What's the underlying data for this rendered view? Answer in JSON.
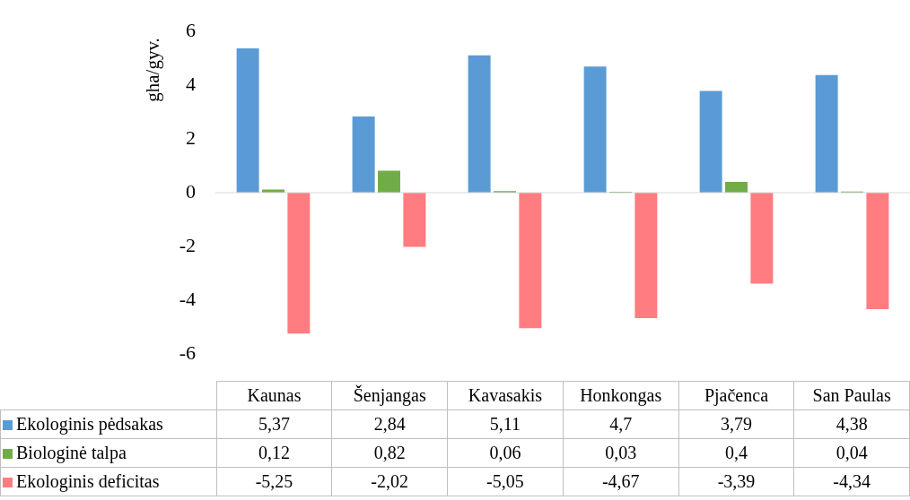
{
  "chart_data": {
    "type": "bar",
    "ylabel": "gha/gyv.",
    "categories": [
      "Kaunas",
      "Šenjangas",
      "Kavasakis",
      "Honkongas",
      "Pjačenca",
      "San Paulas"
    ],
    "series": [
      {
        "name": "Ekologinis pėdsakas",
        "color": "#5b9bd5",
        "values": [
          5.37,
          2.84,
          5.11,
          4.7,
          3.79,
          4.38
        ],
        "value_labels": [
          "5,37",
          "2,84",
          "5,11",
          "4,7",
          "3,79",
          "4,38"
        ]
      },
      {
        "name": "Biologinė talpa",
        "color": "#70ad47",
        "values": [
          0.12,
          0.82,
          0.06,
          0.03,
          0.4,
          0.04
        ],
        "value_labels": [
          "0,12",
          "0,82",
          "0,06",
          "0,03",
          "0,4",
          "0,04"
        ]
      },
      {
        "name": "Ekologinis deficitas",
        "color": "#ff7c80",
        "values": [
          -5.25,
          -2.02,
          -5.05,
          -4.67,
          -3.39,
          -4.34
        ],
        "value_labels": [
          "-5,25",
          "-2,02",
          "-5,05",
          "-4,67",
          "-3,39",
          "-4,34"
        ]
      }
    ],
    "ylim": [
      -6,
      6
    ],
    "yticks": [
      -6,
      -4,
      -2,
      0,
      2,
      4,
      6
    ],
    "legend": "bottom"
  }
}
